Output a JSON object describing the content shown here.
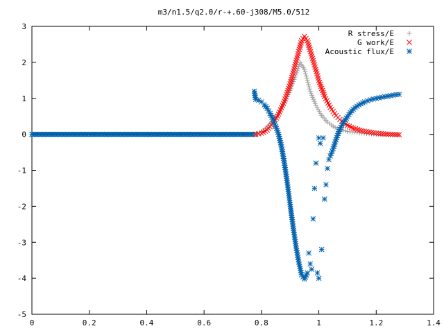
{
  "chart_data": {
    "type": "scatter",
    "title": "m3/n1.5/q2.0/r-+.60-j308/M5.0/512",
    "xlabel": "",
    "ylabel": "",
    "xlim": [
      0,
      1.4
    ],
    "ylim": [
      -5,
      3
    ],
    "xticks": [
      "0",
      "0.2",
      "0.4",
      "0.6",
      "0.8",
      "1",
      "1.2",
      "1.4"
    ],
    "yticks": [
      "3",
      "2",
      "1",
      "0",
      "-1",
      "-2",
      "-3",
      "-4",
      "-5"
    ],
    "grid": false,
    "legend_position": "top-right",
    "series": [
      {
        "name": "R stress/E",
        "marker": "plus",
        "color": "#a0a0a0",
        "points": [
          [
            0.78,
            0.0
          ],
          [
            0.8,
            0.08
          ],
          [
            0.82,
            0.2
          ],
          [
            0.84,
            0.38
          ],
          [
            0.86,
            0.6
          ],
          [
            0.88,
            0.88
          ],
          [
            0.9,
            1.22
          ],
          [
            0.92,
            1.65
          ],
          [
            0.935,
            2.0
          ],
          [
            0.95,
            1.8
          ],
          [
            0.97,
            1.2
          ],
          [
            0.99,
            0.8
          ],
          [
            1.01,
            0.52
          ],
          [
            1.03,
            0.34
          ],
          [
            1.05,
            0.22
          ],
          [
            1.07,
            0.14
          ],
          [
            1.1,
            0.08
          ],
          [
            1.15,
            0.03
          ],
          [
            1.2,
            0.0
          ],
          [
            1.28,
            -0.02
          ]
        ]
      },
      {
        "name": "G work/E",
        "marker": "cross",
        "color": "#ff0000",
        "points": [
          [
            0.78,
            0.0
          ],
          [
            0.8,
            0.03
          ],
          [
            0.82,
            0.12
          ],
          [
            0.84,
            0.3
          ],
          [
            0.86,
            0.56
          ],
          [
            0.88,
            0.92
          ],
          [
            0.9,
            1.4
          ],
          [
            0.92,
            2.0
          ],
          [
            0.94,
            2.6
          ],
          [
            0.95,
            2.72
          ],
          [
            0.96,
            2.6
          ],
          [
            0.98,
            2.05
          ],
          [
            1.0,
            1.5
          ],
          [
            1.02,
            1.05
          ],
          [
            1.04,
            0.75
          ],
          [
            1.06,
            0.52
          ],
          [
            1.08,
            0.36
          ],
          [
            1.1,
            0.25
          ],
          [
            1.12,
            0.17
          ],
          [
            1.15,
            0.1
          ],
          [
            1.2,
            0.03
          ],
          [
            1.25,
            0.0
          ],
          [
            1.28,
            -0.01
          ]
        ]
      },
      {
        "name": "Acoustic flux/E",
        "marker": "star",
        "color": "#0060ad",
        "points": [
          [
            0.775,
            1.2
          ],
          [
            0.78,
            0.97
          ],
          [
            0.79,
            0.95
          ],
          [
            0.8,
            0.9
          ],
          [
            0.81,
            0.82
          ],
          [
            0.82,
            0.72
          ],
          [
            0.83,
            0.58
          ],
          [
            0.84,
            0.42
          ],
          [
            0.85,
            0.22
          ],
          [
            0.86,
            0.0
          ],
          [
            0.87,
            -0.35
          ],
          [
            0.88,
            -0.8
          ],
          [
            0.89,
            -1.35
          ],
          [
            0.9,
            -1.95
          ],
          [
            0.91,
            -2.55
          ],
          [
            0.92,
            -3.1
          ],
          [
            0.93,
            -3.55
          ],
          [
            0.94,
            -3.9
          ],
          [
            0.95,
            -4.02
          ],
          [
            0.96,
            -3.85
          ],
          [
            0.965,
            -3.3
          ],
          [
            0.97,
            -3.6
          ],
          [
            0.975,
            -3.75
          ],
          [
            0.98,
            -2.35
          ],
          [
            0.985,
            -1.5
          ],
          [
            0.99,
            -0.8
          ],
          [
            0.995,
            -3.85
          ],
          [
            1.0,
            -4.0
          ],
          [
            1.0,
            -0.1
          ],
          [
            1.005,
            -0.25
          ],
          [
            1.01,
            -3.2
          ],
          [
            1.015,
            -0.1
          ],
          [
            1.02,
            -1.8
          ],
          [
            1.025,
            -1.4
          ],
          [
            1.03,
            -0.95
          ],
          [
            1.035,
            -0.7
          ],
          [
            1.04,
            -0.6
          ],
          [
            1.05,
            -0.4
          ],
          [
            1.06,
            -0.15
          ],
          [
            1.07,
            0.08
          ],
          [
            1.08,
            0.25
          ],
          [
            1.1,
            0.5
          ],
          [
            1.12,
            0.7
          ],
          [
            1.14,
            0.82
          ],
          [
            1.16,
            0.9
          ],
          [
            1.18,
            0.96
          ],
          [
            1.2,
            1.0
          ],
          [
            1.22,
            1.03
          ],
          [
            1.24,
            1.06
          ],
          [
            1.26,
            1.09
          ],
          [
            1.28,
            1.11
          ]
        ]
      }
    ],
    "flat_segment": {
      "series": "all",
      "x_from": 0.0,
      "x_to": 0.78,
      "y": 0.0
    }
  }
}
